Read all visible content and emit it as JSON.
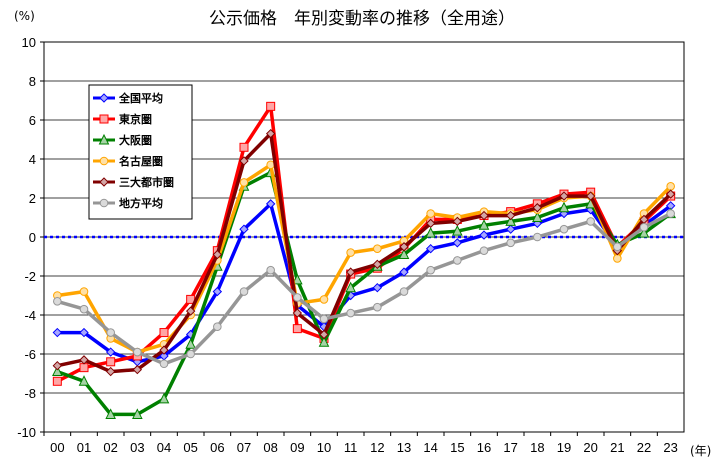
{
  "chart_data": {
    "type": "line",
    "title": "公示価格　年別変動率の推移（全用途）",
    "yunit": "(%)",
    "xunit": "(年)",
    "ylim": [
      -10,
      10
    ],
    "yticks": [
      10,
      8,
      6,
      4,
      2,
      0,
      -2,
      -4,
      -6,
      -8,
      -10
    ],
    "ytick_labels": [
      "10",
      "8",
      "6",
      "4",
      "2",
      "0",
      "-2",
      "-4",
      "-6",
      "-8",
      "-10"
    ],
    "categories": [
      "00",
      "01",
      "02",
      "03",
      "04",
      "05",
      "06",
      "07",
      "08",
      "09",
      "10",
      "11",
      "12",
      "13",
      "14",
      "15",
      "16",
      "17",
      "18",
      "19",
      "20",
      "21",
      "22",
      "23"
    ],
    "series": [
      {
        "name": "全国平均",
        "color": "#0000ff",
        "marker": "diamond",
        "values": [
          -4.9,
          -4.9,
          -5.9,
          -6.4,
          -6.1,
          -5.0,
          -2.8,
          0.4,
          1.7,
          -3.5,
          -4.6,
          -3.0,
          -2.6,
          -1.8,
          -0.6,
          -0.3,
          0.1,
          0.4,
          0.7,
          1.2,
          1.4,
          -0.5,
          0.6,
          1.6
        ]
      },
      {
        "name": "東京圏",
        "color": "#ff0000",
        "marker": "square",
        "values": [
          -7.4,
          -6.7,
          -6.4,
          -6.1,
          -4.9,
          -3.2,
          -0.7,
          4.6,
          6.7,
          -4.7,
          -5.2,
          -1.9,
          -1.6,
          -0.6,
          0.9,
          0.9,
          1.1,
          1.3,
          1.7,
          2.2,
          2.3,
          -0.5,
          0.8,
          2.1
        ]
      },
      {
        "name": "大阪圏",
        "color": "#008000",
        "marker": "triangle",
        "values": [
          -6.9,
          -7.4,
          -9.1,
          -9.1,
          -8.3,
          -5.5,
          -1.5,
          2.6,
          3.3,
          -2.2,
          -5.4,
          -2.6,
          -1.5,
          -0.9,
          0.2,
          0.3,
          0.6,
          0.8,
          1.0,
          1.5,
          1.7,
          -0.4,
          0.2,
          1.2
        ]
      },
      {
        "name": "名古屋圏",
        "color": "#ffa500",
        "marker": "circle",
        "values": [
          -3.0,
          -2.8,
          -5.2,
          -5.9,
          -5.5,
          -4.0,
          -1.2,
          2.8,
          3.7,
          -3.4,
          -3.2,
          -0.8,
          -0.6,
          -0.2,
          1.2,
          1.0,
          1.3,
          1.2,
          1.4,
          2.0,
          2.1,
          -1.1,
          1.2,
          2.6
        ]
      },
      {
        "name": "三大都市圏",
        "color": "#800000",
        "marker": "diamond",
        "values": [
          -6.6,
          -6.3,
          -6.9,
          -6.8,
          -5.8,
          -3.8,
          -0.9,
          3.9,
          5.3,
          -3.9,
          -5.0,
          -1.8,
          -1.4,
          -0.5,
          0.7,
          0.8,
          1.1,
          1.1,
          1.5,
          2.1,
          2.1,
          -0.7,
          0.9,
          2.2
        ]
      },
      {
        "name": "地方平均",
        "color": "#969696",
        "marker": "circle",
        "values": [
          -3.3,
          -3.7,
          -4.9,
          -5.9,
          -6.5,
          -6.0,
          -4.6,
          -2.8,
          -1.7,
          -3.1,
          -4.2,
          -3.9,
          -3.6,
          -2.8,
          -1.7,
          -1.2,
          -0.7,
          -0.3,
          0.0,
          0.4,
          0.8,
          -0.5,
          0.5,
          1.2
        ]
      }
    ],
    "legend_position": "upper-left",
    "zero_line": "dotted-blue"
  }
}
